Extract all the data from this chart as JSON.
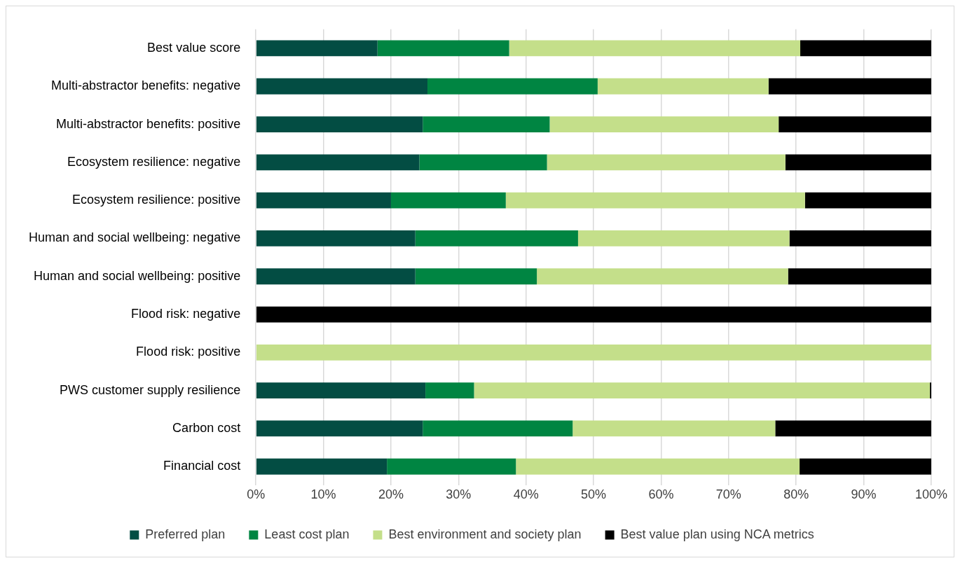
{
  "chart_data": {
    "type": "bar",
    "orientation": "horizontal",
    "stacked": true,
    "grid": "x",
    "legend": "bottom",
    "categories": [
      "Best value score",
      "Multi-abstractor benefits: negative",
      "Multi-abstractor benefits: positive",
      "Ecosystem resilience: negative",
      "Ecosystem resilience: positive",
      "Human and social wellbeing: negative",
      "Human and social wellbeing: positive",
      "Flood risk: negative",
      "Flood risk: positive",
      "PWS customer supply resilience",
      "Carbon cost",
      "Financial cost"
    ],
    "series": [
      {
        "name": "Preferred plan",
        "color": "#034d43",
        "values": [
          18.0,
          25.4,
          24.7,
          24.2,
          20.0,
          23.6,
          23.6,
          0,
          0,
          25.1,
          24.7,
          19.4
        ]
      },
      {
        "name": "Least cost plan",
        "color": "#008542",
        "values": [
          19.5,
          25.2,
          18.8,
          18.9,
          17.0,
          24.1,
          18.0,
          0,
          0,
          7.2,
          22.2,
          19.1
        ]
      },
      {
        "name": "Best environment and society plan",
        "color": "#c4df8a",
        "values": [
          43.1,
          25.3,
          33.9,
          35.3,
          44.3,
          31.3,
          37.2,
          0,
          100,
          67.5,
          30.0,
          42.0
        ]
      },
      {
        "name": "Best value plan using NCA metrics",
        "color": "#000000",
        "values": [
          19.4,
          24.1,
          22.6,
          21.6,
          18.7,
          21.0,
          21.2,
          100,
          0,
          0.2,
          23.1,
          19.5
        ]
      }
    ],
    "xlim": [
      0,
      100
    ],
    "xticks": [
      {
        "value": 0,
        "label": "0%"
      },
      {
        "value": 10,
        "label": "10%"
      },
      {
        "value": 20,
        "label": "20%"
      },
      {
        "value": 30,
        "label": "30%"
      },
      {
        "value": 40,
        "label": "40%"
      },
      {
        "value": 50,
        "label": "50%"
      },
      {
        "value": 60,
        "label": "60%"
      },
      {
        "value": 70,
        "label": "70%"
      },
      {
        "value": 80,
        "label": "80%"
      },
      {
        "value": 90,
        "label": "90%"
      },
      {
        "value": 100,
        "label": "100%"
      }
    ]
  }
}
